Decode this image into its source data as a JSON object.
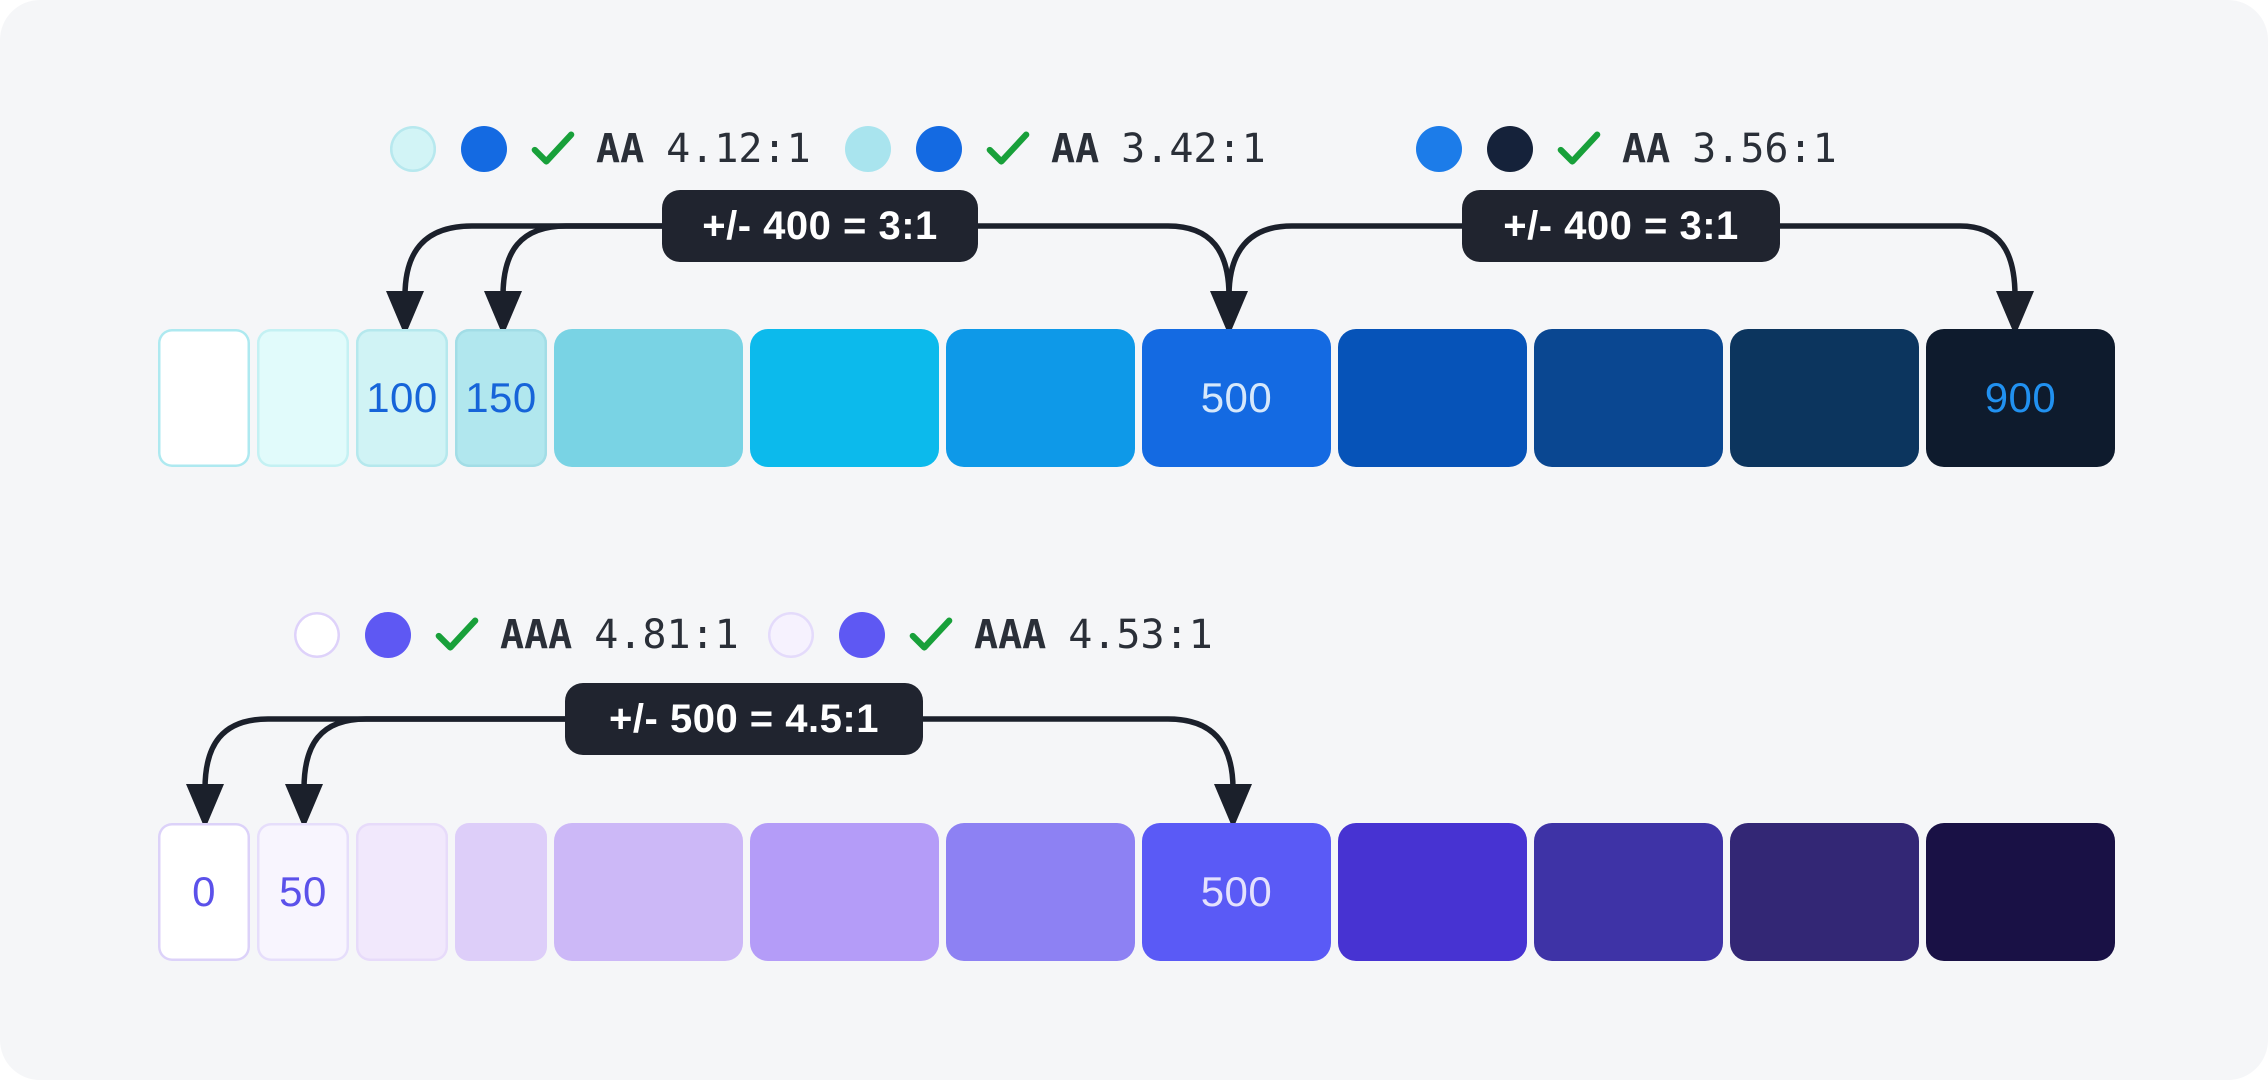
{
  "theme": {
    "page_bg": "#ffffff",
    "panel_bg": "#f5f6f8",
    "connector_color": "#1b202b",
    "pill_bg": "#20242f",
    "pill_text_color": "#ffffff",
    "check_green": "#18a03a",
    "legend_text_color": "#2a2f38"
  },
  "top": {
    "legends": [
      {
        "circle1": "#d2f4f6",
        "circle1_border": "#b7e8ee",
        "circle2": "#146ae2",
        "level": "AA",
        "ratio": "4.12:1"
      },
      {
        "circle1": "#a9e4ee",
        "circle1_border": "",
        "circle2": "#146ae2",
        "level": "AA",
        "ratio": "3.42:1"
      },
      {
        "circle1": "#1c7ce9",
        "circle1_border": "",
        "circle2": "#15223a",
        "level": "AA",
        "ratio": "3.56:1"
      }
    ],
    "pills": [
      {
        "label": "+/- 400 = 3:1"
      },
      {
        "label": "+/- 400 = 3:1"
      }
    ],
    "swatches": [
      {
        "color": "#ffffff",
        "border": "#aee9f0",
        "label": "",
        "label_color": ""
      },
      {
        "color": "#e1fbfb",
        "border": "#c4f1f3",
        "label": "",
        "label_color": ""
      },
      {
        "color": "#d0f3f5",
        "border": "#b5e8ed",
        "label": "100",
        "label_color": "#1664d9"
      },
      {
        "color": "#b1e7ee",
        "border": "#a2dde6",
        "label": "150",
        "label_color": "#1664d9"
      },
      {
        "color": "#79d3e4",
        "border": "",
        "label": "",
        "label_color": ""
      },
      {
        "color": "#0cbaec",
        "border": "",
        "label": "",
        "label_color": ""
      },
      {
        "color": "#0e99e8",
        "border": "",
        "label": "",
        "label_color": ""
      },
      {
        "color": "#146ae2",
        "border": "",
        "label": "500",
        "label_color": "#d6e8fb"
      },
      {
        "color": "#0653b8",
        "border": "",
        "label": "",
        "label_color": ""
      },
      {
        "color": "#0a4791",
        "border": "",
        "label": "",
        "label_color": ""
      },
      {
        "color": "#0c355e",
        "border": "",
        "label": "",
        "label_color": ""
      },
      {
        "color": "#0e1b2d",
        "border": "",
        "label": "900",
        "label_color": "#2191f0"
      }
    ]
  },
  "bottom": {
    "legends": [
      {
        "circle1": "#ffffff",
        "circle1_border": "#ded2fa",
        "circle2": "#5e58f3",
        "level": "AAA",
        "ratio": "4.81:1"
      },
      {
        "circle1": "#f6f2fe",
        "circle1_border": "#e4dbfb",
        "circle2": "#5e58f3",
        "level": "AAA",
        "ratio": "4.53:1"
      }
    ],
    "pills": [
      {
        "label": "+/- 500 = 4.5:1"
      }
    ],
    "swatches": [
      {
        "color": "#ffffff",
        "border": "#dcd2f9",
        "label": "0",
        "label_color": "#5b51ea"
      },
      {
        "color": "#f8f5fe",
        "border": "#e6defb",
        "label": "50",
        "label_color": "#5b51ea"
      },
      {
        "color": "#f1e8fc",
        "border": "#e7dbfa",
        "label": "",
        "label_color": ""
      },
      {
        "color": "#ddcef9",
        "border": "",
        "label": "",
        "label_color": ""
      },
      {
        "color": "#ccb8f7",
        "border": "",
        "label": "",
        "label_color": ""
      },
      {
        "color": "#b49cf8",
        "border": "",
        "label": "",
        "label_color": ""
      },
      {
        "color": "#8d81f3",
        "border": "",
        "label": "",
        "label_color": ""
      },
      {
        "color": "#5a5af6",
        "border": "",
        "label": "500",
        "label_color": "#e4e1fd"
      },
      {
        "color": "#4733d2",
        "border": "",
        "label": "",
        "label_color": ""
      },
      {
        "color": "#3e33a6",
        "border": "",
        "label": "",
        "label_color": ""
      },
      {
        "color": "#332775",
        "border": "",
        "label": "",
        "label_color": ""
      },
      {
        "color": "#191145",
        "border": "",
        "label": "",
        "label_color": ""
      }
    ]
  }
}
